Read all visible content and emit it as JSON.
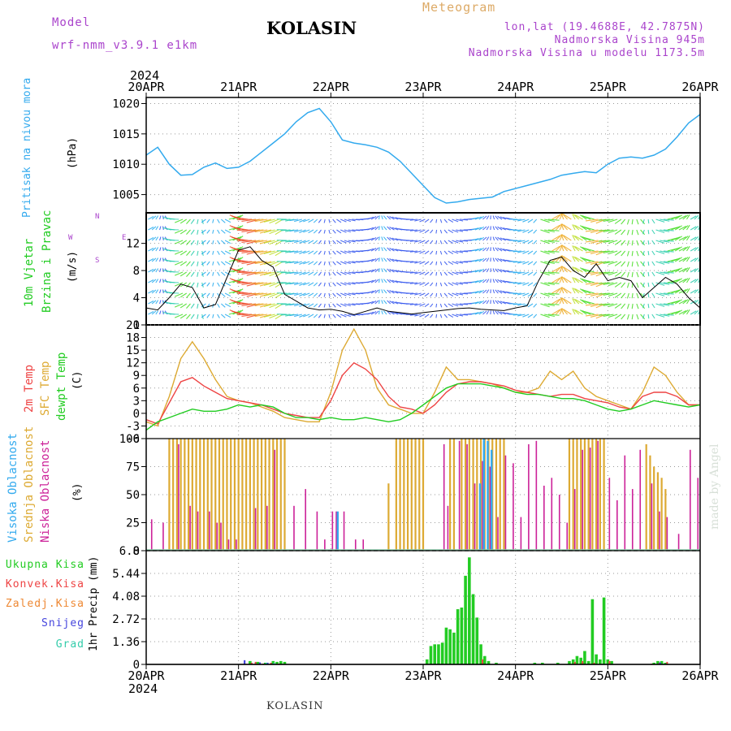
{
  "header": {
    "model_label": "Model",
    "model_name": "wrf-nmm_v3.9.1 e1km",
    "title": "KOLASIN",
    "meteogram": "Meteogram",
    "lonlat": "lon,lat (19.4688E, 42.7875N)",
    "elevation": "Nadmorska Visina 945m",
    "model_elevation": "Nadmorska Visina u modelu 1173.5m",
    "year_top": "2024",
    "year_bottom": "2024"
  },
  "footer": {
    "station": "KOLASIN",
    "credit": "made by Angel"
  },
  "colors": {
    "pressure": "#33aaee",
    "temp2m": "#ee4444",
    "sfc": "#ddaa33",
    "dew": "#22cc22",
    "high_cloud": "#33aaee",
    "mid_cloud": "#ddaa33",
    "low_cloud": "#cc2299",
    "total_precip": "#22cc22",
    "conv": "#ee4444",
    "frozen": "#ee8833",
    "snow": "#4444dd",
    "hail": "#33ccaa",
    "purple": "#aa44cc"
  },
  "panel_labels": {
    "pressure": [
      "Pritisak na nivou mora",
      "(hPa)"
    ],
    "wind": [
      "10m Vjetar",
      "Brzina i Pravac",
      "(m/s)"
    ],
    "wind_rose": [
      "W",
      "E",
      "N",
      "S"
    ],
    "temp": [
      "2m Temp",
      "SFC Temp",
      "dewpt Temp",
      "(C)"
    ],
    "cloud": [
      "Visoka Oblacnost",
      "Srednja Oblacnost",
      "Niska Oblacnost",
      "(%)"
    ],
    "precip_axis": "1hr Precip (mm)",
    "precip_legend": [
      "Ukupna Kisa",
      "Konvek.Kisa",
      "Zaledj.Kisa",
      "Snijeg",
      "Grad"
    ]
  },
  "chart_data": {
    "type": "meteogram",
    "x_ticks": [
      "20APR",
      "21APR",
      "22APR",
      "23APR",
      "24APR",
      "25APR",
      "26APR"
    ],
    "hours_total": 144,
    "pressure": {
      "ylabel": "(hPa)",
      "ylim": [
        1002,
        1021
      ],
      "yticks": [
        1005,
        1010,
        1015,
        1020
      ],
      "hours": [
        0,
        3,
        6,
        9,
        12,
        15,
        18,
        21,
        24,
        27,
        30,
        33,
        36,
        39,
        42,
        45,
        48,
        51,
        54,
        57,
        60,
        63,
        66,
        69,
        72,
        75,
        78,
        81,
        84,
        87,
        90,
        93,
        96,
        99,
        102,
        105,
        108,
        111,
        114,
        117,
        120,
        123,
        126,
        129,
        132,
        135,
        138,
        141,
        144
      ],
      "values": [
        1011.5,
        1012.8,
        1010,
        1008.2,
        1008.3,
        1009.5,
        1010.2,
        1009.3,
        1009.5,
        1010.5,
        1012,
        1013.5,
        1015,
        1017,
        1018.5,
        1019.2,
        1017,
        1014,
        1013.5,
        1013.2,
        1012.8,
        1012,
        1010.5,
        1008.5,
        1006.5,
        1004.5,
        1003.6,
        1003.8,
        1004.2,
        1004.4,
        1004.6,
        1005.5,
        1006,
        1006.5,
        1007,
        1007.5,
        1008.2,
        1008.5,
        1008.8,
        1008.6,
        1010,
        1011,
        1011.2,
        1011,
        1011.5,
        1012.5,
        1014.5,
        1016.8,
        1018.2
      ]
    },
    "wind": {
      "ylabel": "(m/s)",
      "ylim": [
        0,
        16.5
      ],
      "yticks": [
        0,
        4,
        8,
        12
      ],
      "hours": [
        0,
        3,
        6,
        9,
        12,
        15,
        18,
        21,
        24,
        27,
        30,
        33,
        36,
        39,
        42,
        45,
        48,
        51,
        54,
        57,
        60,
        63,
        66,
        69,
        72,
        75,
        78,
        81,
        84,
        87,
        90,
        93,
        96,
        99,
        102,
        105,
        108,
        111,
        114,
        117,
        120,
        123,
        126,
        129,
        132,
        135,
        138,
        141,
        144
      ],
      "speed": [
        2.5,
        2.2,
        4,
        6,
        5.5,
        2.5,
        3,
        7,
        11,
        11.5,
        9.5,
        8.5,
        4.5,
        3.5,
        2.5,
        2.2,
        2.3,
        2,
        1.5,
        2,
        2.5,
        2,
        1.8,
        1.6,
        1.8,
        2,
        2.2,
        2.4,
        2.5,
        2.3,
        2.2,
        2.1,
        2.5,
        2.8,
        6.5,
        9.5,
        10,
        8,
        7,
        9,
        6.5,
        7,
        6.5,
        4,
        5.5,
        7,
        6,
        4,
        2.5
      ]
    },
    "temp": {
      "ylabel": "(C)",
      "ylim": [
        -6,
        21
      ],
      "yticks": [
        -6,
        -3,
        0,
        3,
        6,
        9,
        12,
        15,
        18,
        21
      ],
      "hours": [
        0,
        3,
        6,
        9,
        12,
        15,
        18,
        21,
        24,
        27,
        30,
        33,
        36,
        39,
        42,
        45,
        48,
        51,
        54,
        57,
        60,
        63,
        66,
        69,
        72,
        75,
        78,
        81,
        84,
        87,
        90,
        93,
        96,
        99,
        102,
        105,
        108,
        111,
        114,
        117,
        120,
        123,
        126,
        129,
        132,
        135,
        138,
        141,
        144
      ],
      "t2m": [
        -1.5,
        -2.5,
        2.5,
        7.5,
        8.5,
        6.5,
        5,
        3.5,
        3,
        2.5,
        2,
        1,
        0,
        -0.5,
        -1,
        -1,
        3,
        9,
        12,
        10.5,
        8,
        4,
        1.5,
        1,
        0,
        2,
        5,
        7,
        7.5,
        7.5,
        7,
        6.5,
        5.5,
        5,
        4.5,
        4,
        4.5,
        4.5,
        3.5,
        3,
        2.5,
        1.5,
        1,
        4,
        5,
        5,
        4,
        2,
        2
      ],
      "sfc": [
        -2,
        -3,
        4,
        13,
        17,
        13,
        8,
        4,
        3,
        2.5,
        1.5,
        0.5,
        -1,
        -1.5,
        -2,
        -2,
        5,
        15,
        20,
        15,
        6,
        2,
        1,
        0,
        0,
        5,
        11,
        8,
        8,
        7.5,
        7,
        6,
        5,
        5,
        6,
        10,
        8,
        10,
        6,
        4,
        3,
        2,
        1,
        5,
        11,
        9,
        5,
        2,
        2
      ],
      "dew": [
        -4,
        -2,
        -1,
        0,
        1,
        0.5,
        0.5,
        1,
        2,
        1.5,
        2,
        1.5,
        0,
        -1,
        -1,
        -1.5,
        -1,
        -1.5,
        -1.5,
        -1,
        -1.5,
        -2,
        -1.5,
        0,
        2,
        4,
        6,
        7,
        7,
        7,
        6.5,
        6,
        5,
        4.5,
        4.5,
        4,
        3.5,
        3.5,
        3,
        2,
        1,
        0.5,
        1,
        2,
        3,
        2.5,
        2,
        1.5,
        2
      ]
    },
    "cloud": {
      "ylabel": "(%)",
      "ylim": [
        0,
        100
      ],
      "yticks": [
        0,
        25,
        50,
        75,
        100
      ],
      "mid_bars": [
        [
          6,
          100
        ],
        [
          7,
          100
        ],
        [
          8,
          100
        ],
        [
          9,
          100
        ],
        [
          10,
          100
        ],
        [
          11,
          100
        ],
        [
          12,
          100
        ],
        [
          13,
          100
        ],
        [
          14,
          100
        ],
        [
          15,
          100
        ],
        [
          16,
          100
        ],
        [
          17,
          100
        ],
        [
          18,
          100
        ],
        [
          19,
          100
        ],
        [
          20,
          100
        ],
        [
          21,
          100
        ],
        [
          22,
          100
        ],
        [
          23,
          100
        ],
        [
          24,
          100
        ],
        [
          25,
          100
        ],
        [
          26,
          100
        ],
        [
          27,
          100
        ],
        [
          28,
          100
        ],
        [
          29,
          100
        ],
        [
          30,
          100
        ],
        [
          31,
          100
        ],
        [
          32,
          100
        ],
        [
          33,
          100
        ],
        [
          34,
          100
        ],
        [
          35,
          100
        ],
        [
          36,
          100
        ],
        [
          63,
          60
        ],
        [
          65,
          100
        ],
        [
          66,
          100
        ],
        [
          67,
          100
        ],
        [
          68,
          100
        ],
        [
          69,
          100
        ],
        [
          70,
          100
        ],
        [
          71,
          100
        ],
        [
          72,
          100
        ],
        [
          79,
          100
        ],
        [
          80,
          100
        ],
        [
          82,
          100
        ],
        [
          83,
          100
        ],
        [
          84,
          100
        ],
        [
          85,
          100
        ],
        [
          86,
          100
        ],
        [
          87,
          100
        ],
        [
          88,
          100
        ],
        [
          89,
          100
        ],
        [
          90,
          100
        ],
        [
          91,
          100
        ],
        [
          92,
          100
        ],
        [
          93,
          100
        ],
        [
          110,
          100
        ],
        [
          111,
          100
        ],
        [
          112,
          100
        ],
        [
          113,
          100
        ],
        [
          114,
          100
        ],
        [
          115,
          100
        ],
        [
          116,
          100
        ],
        [
          117,
          100
        ],
        [
          118,
          100
        ],
        [
          119,
          100
        ],
        [
          130,
          95
        ],
        [
          131,
          85
        ],
        [
          132,
          75
        ],
        [
          133,
          70
        ],
        [
          134,
          65
        ],
        [
          135,
          55
        ]
      ],
      "low_bars": [
        [
          1,
          28
        ],
        [
          4,
          25
        ],
        [
          8,
          95
        ],
        [
          11,
          40
        ],
        [
          13,
          35
        ],
        [
          16,
          35
        ],
        [
          18,
          25
        ],
        [
          19,
          25
        ],
        [
          21,
          10
        ],
        [
          23,
          10
        ],
        [
          28,
          38
        ],
        [
          31,
          40
        ],
        [
          33,
          90
        ],
        [
          38,
          40
        ],
        [
          41,
          55
        ],
        [
          44,
          35
        ],
        [
          46,
          10
        ],
        [
          48,
          35
        ],
        [
          49,
          35
        ],
        [
          51,
          35
        ],
        [
          54,
          10
        ],
        [
          56,
          10
        ],
        [
          77,
          95
        ],
        [
          78,
          40
        ],
        [
          81,
          98
        ],
        [
          83,
          95
        ],
        [
          85,
          60
        ],
        [
          87,
          80
        ],
        [
          89,
          75
        ],
        [
          91,
          30
        ],
        [
          93,
          85
        ],
        [
          95,
          78
        ],
        [
          97,
          30
        ],
        [
          99,
          95
        ],
        [
          101,
          98
        ],
        [
          103,
          58
        ],
        [
          105,
          65
        ],
        [
          107,
          50
        ],
        [
          109,
          25
        ],
        [
          111,
          55
        ],
        [
          113,
          90
        ],
        [
          115,
          92
        ],
        [
          117,
          98
        ],
        [
          120,
          65
        ],
        [
          122,
          45
        ],
        [
          124,
          85
        ],
        [
          126,
          55
        ],
        [
          128,
          90
        ],
        [
          131,
          60
        ],
        [
          133,
          35
        ],
        [
          135,
          30
        ],
        [
          138,
          15
        ],
        [
          141,
          90
        ],
        [
          143,
          65
        ]
      ],
      "high_bars": [
        [
          50,
          35
        ],
        [
          87,
          60
        ],
        [
          88,
          100
        ],
        [
          89,
          98
        ],
        [
          90,
          90
        ]
      ]
    },
    "precip": {
      "ylabel": "1hr Precip (mm)",
      "ylim": [
        0,
        6.8
      ],
      "yticks": [
        0,
        1.36,
        2.72,
        4.08,
        5.44,
        6.8
      ],
      "total_bars": [
        [
          27,
          0.2
        ],
        [
          29,
          0.15
        ],
        [
          31,
          0.1
        ],
        [
          33,
          0.2
        ],
        [
          34,
          0.15
        ],
        [
          35,
          0.2
        ],
        [
          36,
          0.15
        ],
        [
          73,
          0.3
        ],
        [
          74,
          1.1
        ],
        [
          75,
          1.2
        ],
        [
          76,
          1.2
        ],
        [
          77,
          1.3
        ],
        [
          78,
          2.2
        ],
        [
          79,
          2.1
        ],
        [
          80,
          1.9
        ],
        [
          81,
          3.3
        ],
        [
          82,
          3.4
        ],
        [
          83,
          5.3
        ],
        [
          84,
          6.4
        ],
        [
          85,
          4.2
        ],
        [
          86,
          2.8
        ],
        [
          87,
          1.2
        ],
        [
          88,
          0.5
        ],
        [
          89,
          0.2
        ],
        [
          91,
          0.1
        ],
        [
          101,
          0.1
        ],
        [
          103,
          0.1
        ],
        [
          107,
          0.1
        ],
        [
          110,
          0.2
        ],
        [
          111,
          0.3
        ],
        [
          112,
          0.5
        ],
        [
          113,
          0.4
        ],
        [
          114,
          0.8
        ],
        [
          115,
          0.2
        ],
        [
          116,
          3.9
        ],
        [
          117,
          0.6
        ],
        [
          118,
          0.3
        ],
        [
          119,
          4.0
        ],
        [
          120,
          0.3
        ],
        [
          121,
          0.2
        ],
        [
          132,
          0.1
        ],
        [
          133,
          0.2
        ],
        [
          134,
          0.2
        ],
        [
          135,
          0.1
        ]
      ],
      "conv_bars": [
        [
          27,
          0.1
        ],
        [
          28,
          0.15
        ],
        [
          30,
          0.05
        ],
        [
          32,
          0.1
        ],
        [
          34,
          0.05
        ],
        [
          87,
          0.3
        ],
        [
          111,
          0.15
        ],
        [
          113,
          0.2
        ],
        [
          116,
          0.1
        ],
        [
          120,
          0.2
        ],
        [
          131,
          0.05
        ],
        [
          133,
          0.1
        ],
        [
          135,
          0.15
        ]
      ],
      "snow_bars": [
        [
          26,
          0.25
        ],
        [
          30,
          0.12
        ],
        [
          32,
          0.1
        ],
        [
          134,
          0.12
        ]
      ],
      "hail_bars": [
        [
          31,
          0.1
        ],
        [
          33,
          0.1
        ]
      ]
    }
  }
}
